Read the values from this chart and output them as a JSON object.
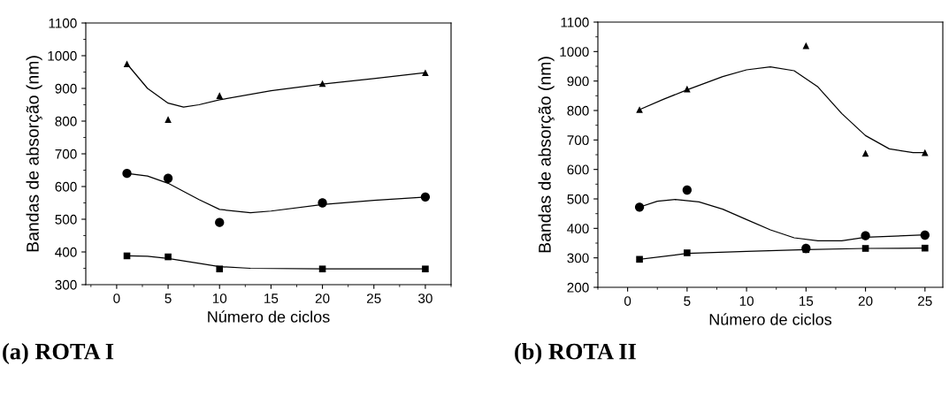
{
  "chart_data": [
    {
      "type": "scatter",
      "title": "(a) ROTA I",
      "xlabel": "Número de ciclos",
      "ylabel": "Bandas de absorção (nm)",
      "xlim": [
        -3,
        32.5
      ],
      "xticks": [
        0,
        5,
        10,
        15,
        20,
        25,
        30
      ],
      "ylim": [
        300,
        1100
      ],
      "yticks": [
        300,
        400,
        500,
        600,
        700,
        800,
        900,
        1000,
        1100
      ],
      "grid": false,
      "legend": false,
      "series": [
        {
          "marker": "triangle",
          "color": "#000000",
          "x": [
            1,
            5,
            10,
            20,
            30
          ],
          "values": [
            975,
            805,
            878,
            915,
            948
          ]
        },
        {
          "marker": "circle",
          "color": "#000000",
          "x": [
            1,
            5,
            10,
            20,
            30
          ],
          "values": [
            640,
            625,
            490,
            550,
            568
          ]
        },
        {
          "marker": "square",
          "color": "#000000",
          "x": [
            1,
            5,
            10,
            20,
            30
          ],
          "values": [
            388,
            385,
            348,
            348,
            348
          ]
        },
        {
          "type": "line",
          "marker": "none",
          "color": "#000000",
          "x": [
            1,
            3,
            5,
            6.5,
            8,
            10,
            15,
            20,
            25,
            30
          ],
          "values": [
            975,
            900,
            855,
            843,
            850,
            865,
            893,
            913,
            930,
            948
          ]
        },
        {
          "type": "line",
          "marker": "none",
          "color": "#000000",
          "x": [
            1,
            3,
            5,
            8,
            10,
            13,
            15,
            20,
            25,
            30
          ],
          "values": [
            640,
            632,
            610,
            560,
            530,
            520,
            525,
            545,
            558,
            568
          ]
        },
        {
          "type": "line",
          "marker": "none",
          "color": "#000000",
          "x": [
            1,
            3,
            5,
            8,
            10,
            13,
            20,
            30
          ],
          "values": [
            388,
            387,
            380,
            365,
            355,
            350,
            348,
            348
          ]
        }
      ]
    },
    {
      "type": "scatter",
      "title": "(b) ROTA II",
      "xlabel": "Número de ciclos",
      "ylabel": "Bandas de absorção (nm)",
      "xlim": [
        -2.5,
        26.5
      ],
      "xticks": [
        0,
        5,
        10,
        15,
        20,
        25
      ],
      "ylim": [
        200,
        1100
      ],
      "yticks": [
        200,
        300,
        400,
        500,
        600,
        700,
        800,
        900,
        1000,
        1100
      ],
      "grid": false,
      "legend": false,
      "series": [
        {
          "marker": "triangle",
          "color": "#000000",
          "x": [
            1,
            5,
            15,
            20,
            25
          ],
          "values": [
            803,
            873,
            1020,
            655,
            657
          ]
        },
        {
          "marker": "circle",
          "color": "#000000",
          "x": [
            1,
            5,
            15,
            20,
            25
          ],
          "values": [
            472,
            530,
            332,
            375,
            377
          ]
        },
        {
          "marker": "square",
          "color": "#000000",
          "x": [
            1,
            5,
            15,
            20,
            25
          ],
          "values": [
            295,
            317,
            328,
            332,
            333
          ]
        },
        {
          "type": "line",
          "marker": "none",
          "color": "#000000",
          "x": [
            1,
            3,
            5,
            8,
            10,
            12,
            14,
            16,
            18,
            20,
            22,
            24,
            25
          ],
          "values": [
            803,
            838,
            870,
            915,
            938,
            948,
            935,
            880,
            790,
            715,
            670,
            657,
            657
          ]
        },
        {
          "type": "line",
          "marker": "none",
          "color": "#000000",
          "x": [
            1,
            2.5,
            4,
            6,
            8,
            10,
            12,
            14,
            16,
            18,
            20,
            25
          ],
          "values": [
            472,
            492,
            498,
            490,
            465,
            430,
            395,
            368,
            358,
            358,
            370,
            378
          ]
        },
        {
          "type": "line",
          "marker": "none",
          "color": "#000000",
          "x": [
            1,
            5,
            10,
            15,
            20,
            25
          ],
          "values": [
            295,
            315,
            322,
            328,
            332,
            333
          ]
        }
      ]
    }
  ]
}
